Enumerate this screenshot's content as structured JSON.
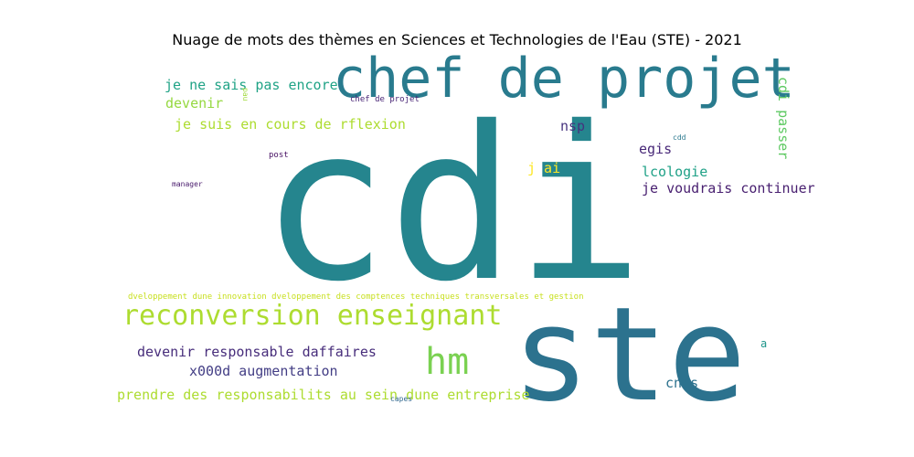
{
  "chart_data": {
    "type": "wordcloud",
    "title": "Nuage de mots des thèmes en Sciences et Technologies de l'Eau (STE) - 2021",
    "words": [
      {
        "text": "cdi",
        "color": "#25858e"
      },
      {
        "text": "ste",
        "color": "#2c728e"
      },
      {
        "text": "chef de projet",
        "color": "#297b8e"
      },
      {
        "text": "reconversion enseignant",
        "color": "#addc30"
      },
      {
        "text": "hm",
        "color": "#7ad151"
      },
      {
        "text": "je ne sais pas encore",
        "color": "#20a386"
      },
      {
        "text": "devenir",
        "color": "#95d840"
      },
      {
        "text": "je suis en cours de rflexion",
        "color": "#addc30"
      },
      {
        "text": "cdi passer",
        "color": "#5ec962"
      },
      {
        "text": "nsp",
        "color": "#46327e"
      },
      {
        "text": "egis",
        "color": "#482878"
      },
      {
        "text": "j ai",
        "color": "#fde725"
      },
      {
        "text": "lcologie",
        "color": "#1fa187"
      },
      {
        "text": "je voudrais continuer",
        "color": "#481f70"
      },
      {
        "text": "devenir responsable daffaires",
        "color": "#472d7b"
      },
      {
        "text": "x000d augmentation",
        "color": "#433e85"
      },
      {
        "text": "prendre des responsabilits au sein dune entreprise",
        "color": "#addc30"
      },
      {
        "text": "cnrs",
        "color": "#2c728e"
      },
      {
        "text": "a",
        "color": "#1f968b"
      },
      {
        "text": "dveloppement dune innovation dveloppement des comptences techniques transversales et gestion",
        "color": "#c8e020"
      },
      {
        "text": "chef de projet",
        "color": "#482475"
      },
      {
        "text": "pau",
        "color": "#a0da39"
      },
      {
        "text": "cdd",
        "color": "#2a788e"
      },
      {
        "text": "post",
        "color": "#471063"
      },
      {
        "text": "manager",
        "color": "#481a6c"
      },
      {
        "text": "capes",
        "color": "#31688e"
      }
    ]
  }
}
